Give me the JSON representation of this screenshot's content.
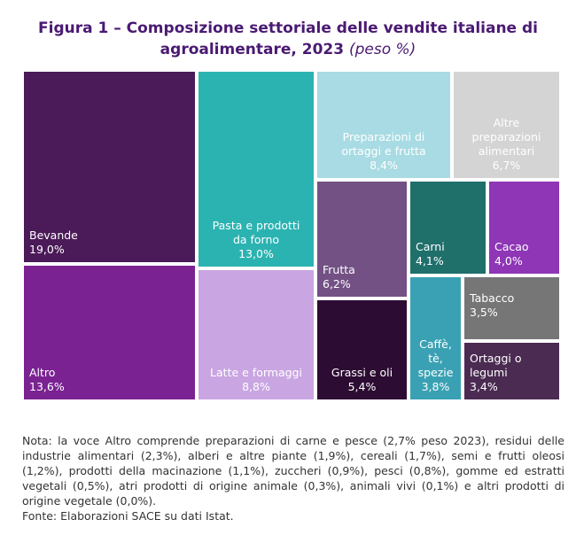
{
  "title": {
    "main": "Figura 1 – Composizione settoriale delle vendite italiane di agroalimentare, 2023",
    "sub": "(peso %)"
  },
  "chart_data": {
    "type": "treemap",
    "title": "Figura 1 – Composizione settoriale delle vendite italiane di agroalimentare, 2023 (peso %)",
    "unit": "peso %",
    "items": [
      {
        "name": "Bevande",
        "label": "Bevande",
        "value": 19.0,
        "value_label": "19,0%",
        "color": "#4b1a58"
      },
      {
        "name": "Altro",
        "label": "Altro",
        "value": 13.6,
        "value_label": "13,6%",
        "color": "#7a2292"
      },
      {
        "name": "Pasta e prodotti da forno",
        "label": "Pasta e prodotti\nda forno",
        "value": 13.0,
        "value_label": "13,0%",
        "color": "#2bb3b1"
      },
      {
        "name": "Latte e formaggi",
        "label": "Latte e formaggi",
        "value": 8.8,
        "value_label": "8,8%",
        "color": "#c9a5e2"
      },
      {
        "name": "Preparazioni di ortaggi e frutta",
        "label": "Preparazioni di\nortaggi e frutta",
        "value": 8.4,
        "value_label": "8,4%",
        "color": "#a8dbe3"
      },
      {
        "name": "Altre preparazioni alimentari",
        "label": "Altre\npreparazioni\nalimentari",
        "value": 6.7,
        "value_label": "6,7%",
        "color": "#d4d4d4"
      },
      {
        "name": "Frutta",
        "label": "Frutta",
        "value": 6.2,
        "value_label": "6,2%",
        "color": "#735184"
      },
      {
        "name": "Grassi e oli",
        "label": "Grassi e oli",
        "value": 5.4,
        "value_label": "5,4%",
        "color": "#2d0c33"
      },
      {
        "name": "Carni",
        "label": "Carni",
        "value": 4.1,
        "value_label": "4,1%",
        "color": "#1f6f6b"
      },
      {
        "name": "Cacao",
        "label": "Cacao",
        "value": 4.0,
        "value_label": "4,0%",
        "color": "#8e36b5"
      },
      {
        "name": "Caffè, tè, spezie",
        "label": "Caffè,\ntè,\nspezie",
        "value": 3.8,
        "value_label": "3,8%",
        "color": "#3aa1b4"
      },
      {
        "name": "Tabacco",
        "label": "Tabacco",
        "value": 3.5,
        "value_label": "3,5%",
        "color": "#767676"
      },
      {
        "name": "Ortaggi o legumi",
        "label": "Ortaggi o\nlegumi",
        "value": 3.4,
        "value_label": "3,4%",
        "color": "#4b2b52"
      }
    ]
  },
  "note": {
    "text": "Nota: la voce Altro comprende preparazioni di carne e pesce (2,7% peso 2023), residui delle industrie alimentari (2,3%), alberi e altre piante (1,9%), cereali (1,7%), semi e frutti oleosi (1,2%), prodotti della macinazione (1,1%), zuccheri (0,9%), pesci (0,8%), gomme ed estratti vegetali (0,5%), atri prodotti di origine animale (0,3%), animali vivi (0,1%) e altri prodotti di origine vegetale (0,0%).",
    "source": "Fonte: Elaborazioni SACE su dati Istat."
  }
}
